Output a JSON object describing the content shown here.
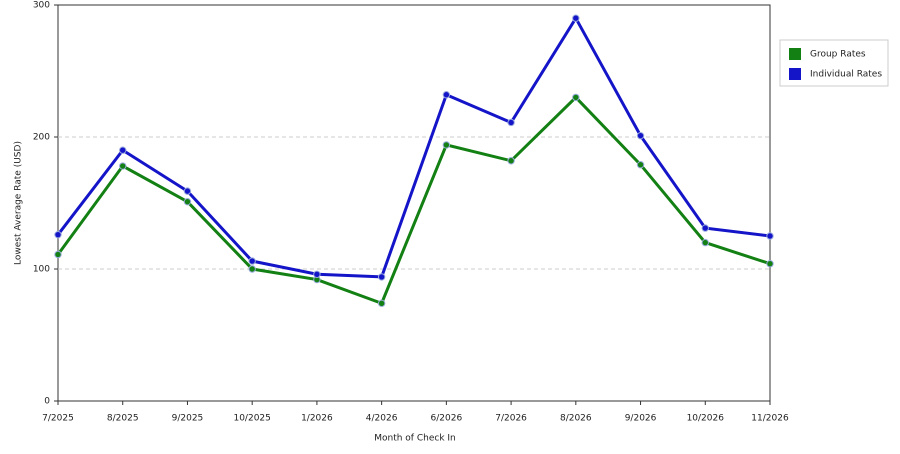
{
  "chart_data": {
    "type": "line",
    "x_label": "Month of Check In",
    "y_label": "Lowest Average Rate (USD)",
    "categories": [
      "7/2025",
      "8/2025",
      "9/2025",
      "10/2025",
      "1/2026",
      "4/2026",
      "6/2026",
      "7/2026",
      "8/2026",
      "9/2026",
      "10/2026",
      "11/2026"
    ],
    "series": [
      {
        "name": "Group Rates",
        "color": "#138013",
        "values": [
          111,
          178,
          151,
          100,
          92,
          74,
          194,
          182,
          230,
          179,
          120,
          104
        ]
      },
      {
        "name": "Individual Rates",
        "color": "#1414c8",
        "values": [
          126,
          190,
          159,
          106,
          96,
          94,
          232,
          211,
          290,
          201,
          131,
          125
        ]
      }
    ],
    "ylim": [
      0,
      300
    ],
    "yticks": [
      0,
      100,
      200,
      300
    ],
    "grid": true,
    "legend": "right"
  }
}
